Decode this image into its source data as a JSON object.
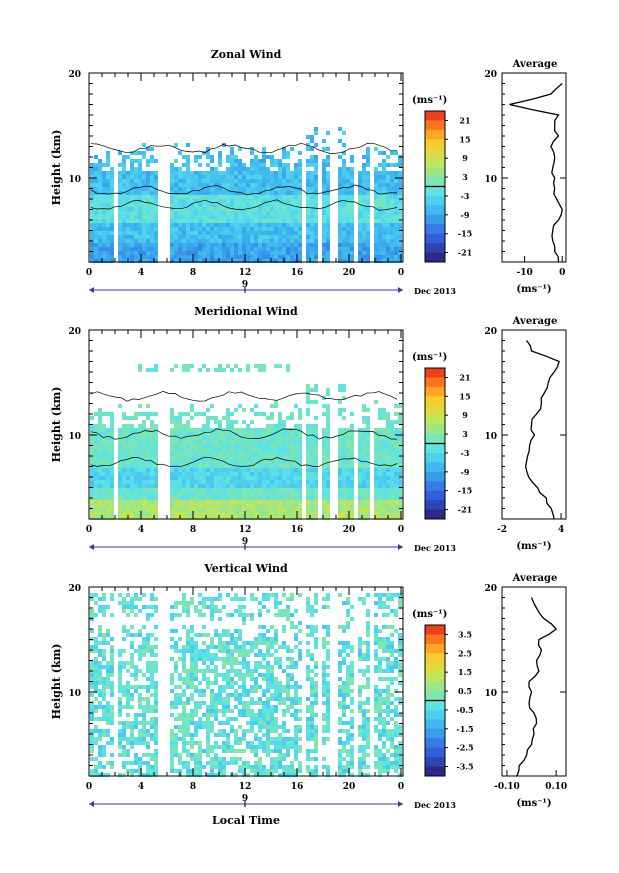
{
  "chart_data": [
    {
      "type": "heatmap",
      "title": "Zonal Wind",
      "ylabel": "Height (km)",
      "xticks": [
        "0",
        "4",
        "8",
        "12",
        "16",
        "20",
        "0"
      ],
      "yticks": [
        "20",
        "10"
      ],
      "xlim": [
        0,
        24
      ],
      "ylim": [
        2,
        20
      ],
      "date_label": "9",
      "month_label": "Dec 2013",
      "colorbar": {
        "unit": "(ms⁻¹)",
        "ticks": [
          "21",
          "15",
          "9",
          "3",
          "-3",
          "-9",
          "-15",
          "-21"
        ],
        "range": [
          -24,
          24
        ]
      },
      "profile": {
        "title": "Average",
        "xlabel": "(ms⁻¹)",
        "xticks": [
          "-10",
          "0"
        ],
        "xlim": [
          -16,
          1
        ],
        "yticks": [
          "20",
          "10"
        ],
        "heights": [
          2,
          3,
          4,
          5,
          6,
          7,
          8,
          9,
          10,
          11,
          12,
          13,
          14,
          15,
          16,
          17,
          18,
          19
        ],
        "values": [
          -1,
          -2,
          -2.5,
          -2.5,
          -1,
          0,
          -1.5,
          -2,
          -2,
          -2.5,
          -2,
          -3,
          -1,
          -2,
          -1,
          -14,
          -3,
          0
        ]
      }
    },
    {
      "type": "heatmap",
      "title": "Meridional Wind",
      "ylabel": "Height (km)",
      "xticks": [
        "0",
        "4",
        "8",
        "12",
        "16",
        "20",
        "0"
      ],
      "yticks": [
        "20",
        "10"
      ],
      "xlim": [
        0,
        24
      ],
      "ylim": [
        2,
        20
      ],
      "date_label": "9",
      "month_label": "Dec 2013",
      "colorbar": {
        "unit": "(ms⁻¹)",
        "ticks": [
          "21",
          "15",
          "9",
          "3",
          "-3",
          "-9",
          "-15",
          "-21"
        ],
        "range": [
          -24,
          24
        ]
      },
      "profile": {
        "title": "Average",
        "xlabel": "(ms⁻¹)",
        "xticks": [
          "-2",
          "4"
        ],
        "xlim": [
          -2,
          4.5
        ],
        "yticks": [
          "20",
          "10"
        ],
        "heights": [
          2,
          3,
          4,
          5,
          6,
          7,
          8,
          9,
          10,
          11,
          12,
          13,
          14,
          15,
          16,
          17,
          18,
          19
        ],
        "values": [
          3.3,
          3.0,
          2.5,
          1.6,
          0.7,
          0.4,
          0.6,
          0.8,
          1.3,
          1.0,
          1.5,
          2.0,
          2.3,
          2.7,
          3.3,
          3.8,
          1.0,
          0.5
        ]
      }
    },
    {
      "type": "heatmap",
      "title": "Vertical Wind",
      "ylabel": "Height (km)",
      "xlabel": "Local Time",
      "xticks": [
        "0",
        "4",
        "8",
        "12",
        "16",
        "20",
        "0"
      ],
      "yticks": [
        "20",
        "10"
      ],
      "xlim": [
        0,
        24
      ],
      "ylim": [
        2,
        20
      ],
      "date_label": "9",
      "month_label": "Dec 2013",
      "colorbar": {
        "unit": "(ms⁻¹)",
        "ticks": [
          "3.5",
          "2.5",
          "1.5",
          "0.5",
          "-0.5",
          "-1.5",
          "-2.5",
          "-3.5"
        ],
        "range": [
          -4,
          4
        ]
      },
      "profile": {
        "title": "Average",
        "xlabel": "(ms⁻¹)",
        "xticks": [
          "-0.10",
          "0.10"
        ],
        "xlim": [
          -0.12,
          0.14
        ],
        "yticks": [
          "20",
          "10"
        ],
        "heights": [
          2,
          3,
          4,
          5,
          6,
          7,
          8,
          9,
          10,
          11,
          12,
          13,
          14,
          15,
          16,
          17,
          18,
          19
        ],
        "values": [
          -0.06,
          -0.05,
          -0.02,
          0.0,
          0.01,
          0.02,
          0.01,
          -0.01,
          0.0,
          -0.01,
          0.03,
          0.02,
          0.04,
          0.03,
          0.1,
          0.05,
          0.02,
          0.0
        ]
      }
    }
  ]
}
